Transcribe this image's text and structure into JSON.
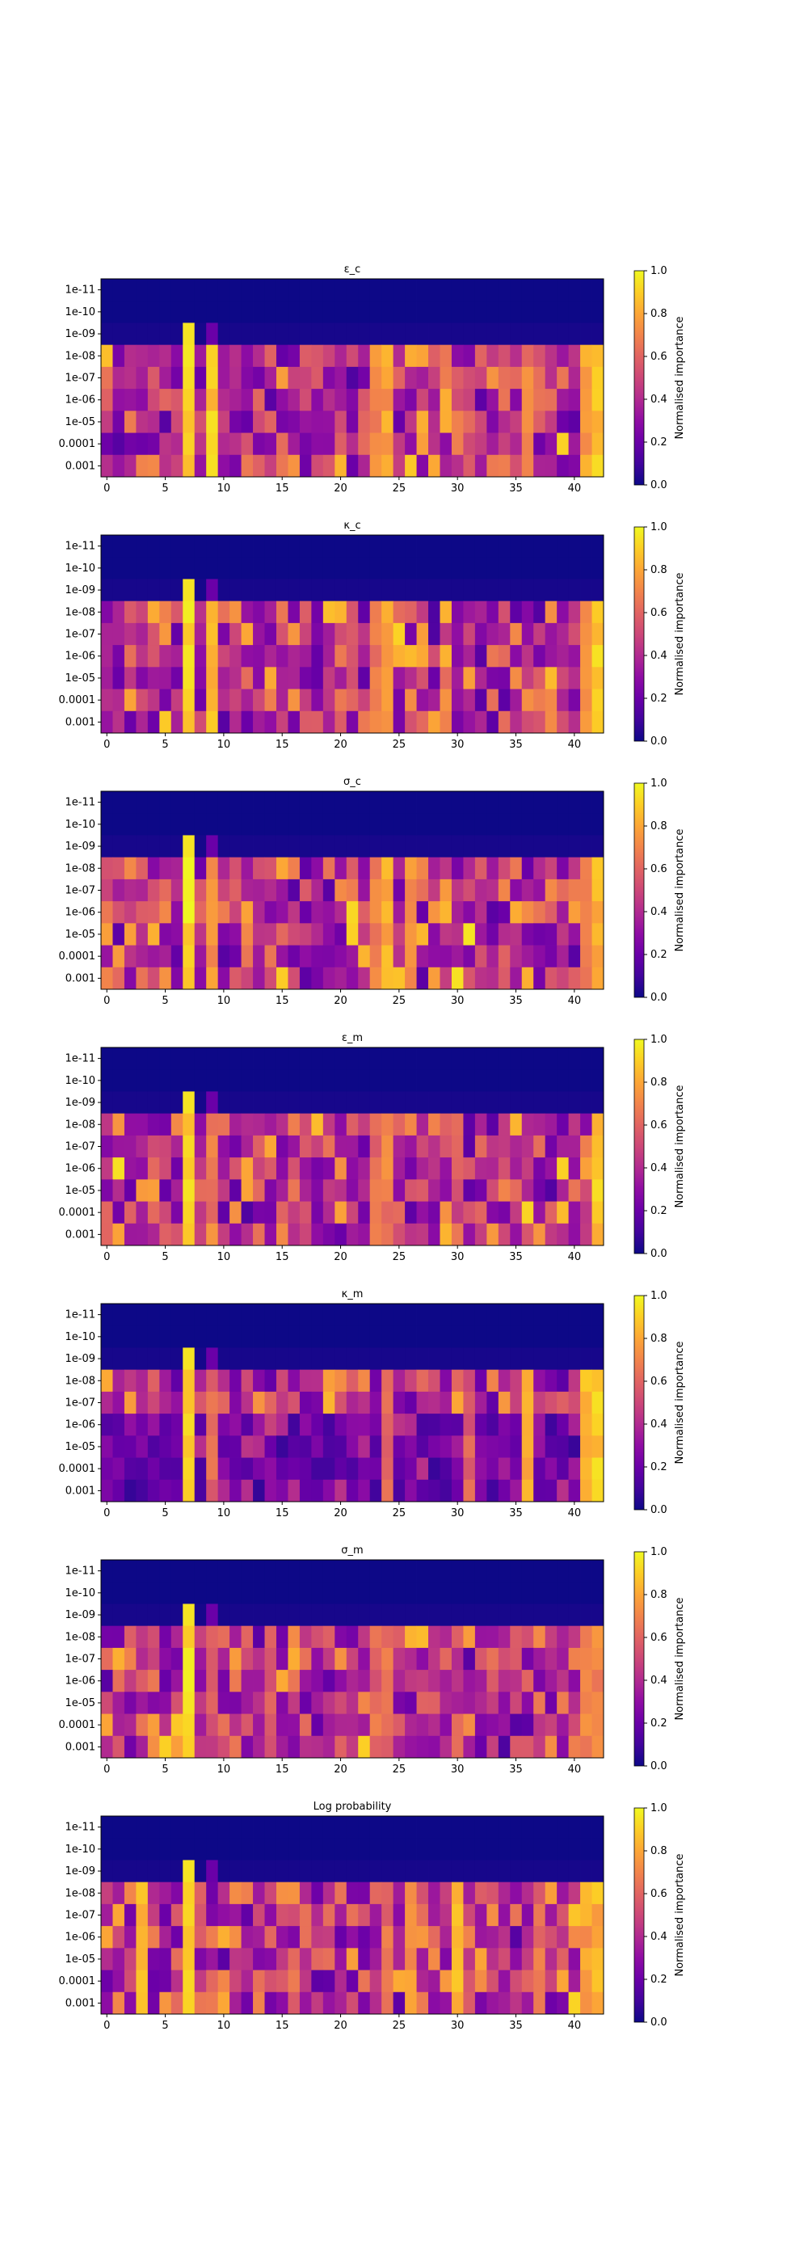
{
  "figure": {
    "colorbar": {
      "label": "Normalised importance",
      "ticks": [
        "0.0",
        "0.2",
        "0.4",
        "0.6",
        "0.8",
        "1.0"
      ],
      "colormap": "plasma"
    },
    "y_ticks": [
      "1e-11",
      "1e-10",
      "1e-09",
      "1e-08",
      "1e-07",
      "1e-06",
      "1e-05",
      "0.0001",
      "0.001"
    ],
    "x_ticks": [
      "0",
      "5",
      "10",
      "15",
      "20",
      "25",
      "30",
      "35",
      "40"
    ]
  },
  "chart_data": [
    {
      "type": "heatmap",
      "title": "ε_c",
      "x": "feature index 0-42",
      "y": [
        "1e-11",
        "1e-10",
        "1e-09",
        "1e-08",
        "1e-07",
        "1e-06",
        "1e-05",
        "0.0001",
        "0.001"
      ],
      "vmin": 0,
      "vmax": 1,
      "grid": false,
      "description_values": "rows 1e-11 and 1e-10 ≈ 0; highest columns ≈ 7, 9, 24, 41-42"
    },
    {
      "type": "heatmap",
      "title": "κ_c",
      "y": [
        "1e-11",
        "1e-10",
        "1e-09",
        "1e-08",
        "1e-07",
        "1e-06",
        "1e-05",
        "0.0001",
        "0.001"
      ],
      "vmin": 0,
      "vmax": 1,
      "grid": false
    },
    {
      "type": "heatmap",
      "title": "σ_c",
      "y": [
        "1e-11",
        "1e-10",
        "1e-09",
        "1e-08",
        "1e-07",
        "1e-06",
        "1e-05",
        "0.0001",
        "0.001"
      ],
      "vmin": 0,
      "vmax": 1,
      "grid": false
    },
    {
      "type": "heatmap",
      "title": "ε_m",
      "y": [
        "1e-11",
        "1e-10",
        "1e-09",
        "1e-08",
        "1e-07",
        "1e-06",
        "1e-05",
        "0.0001",
        "0.001"
      ],
      "vmin": 0,
      "vmax": 1,
      "grid": false
    },
    {
      "type": "heatmap",
      "title": "κ_m",
      "y": [
        "1e-11",
        "1e-10",
        "1e-09",
        "1e-08",
        "1e-07",
        "1e-06",
        "1e-05",
        "0.0001",
        "0.001"
      ],
      "vmin": 0,
      "vmax": 1,
      "grid": false
    },
    {
      "type": "heatmap",
      "title": "σ_m",
      "y": [
        "1e-11",
        "1e-10",
        "1e-09",
        "1e-08",
        "1e-07",
        "1e-06",
        "1e-05",
        "0.0001",
        "0.001"
      ],
      "vmin": 0,
      "vmax": 1,
      "grid": false
    },
    {
      "type": "heatmap",
      "title": "Log probability",
      "y": [
        "1e-11",
        "1e-10",
        "1e-09",
        "1e-08",
        "1e-07",
        "1e-06",
        "1e-05",
        "0.0001",
        "0.001"
      ],
      "vmin": 0,
      "vmax": 1,
      "grid": false
    }
  ]
}
